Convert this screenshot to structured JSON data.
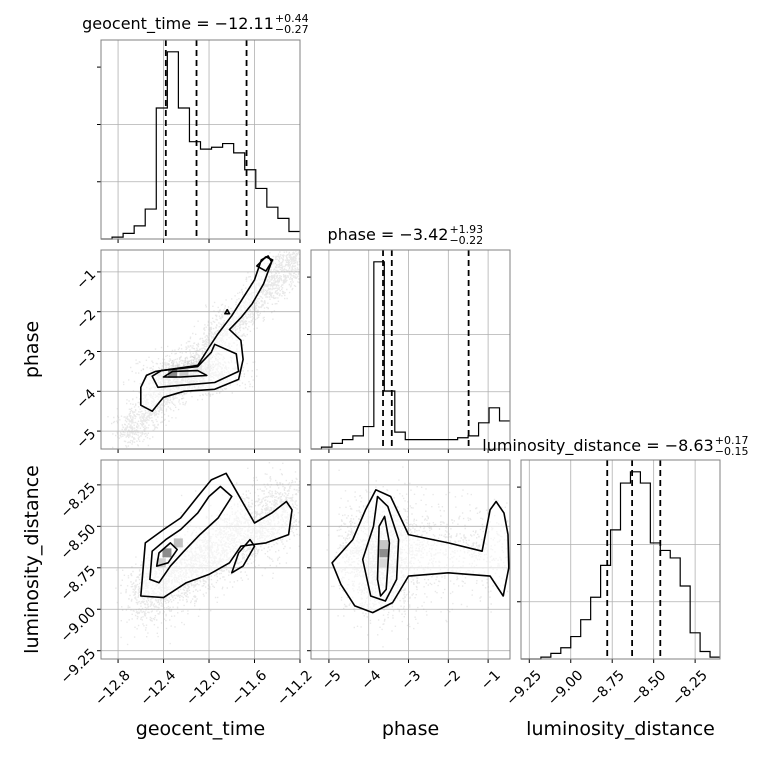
{
  "chart_data": {
    "type": "corner",
    "parameters": [
      "geocent_time",
      "phase",
      "luminosity_distance"
    ],
    "titles": [
      {
        "param": "geocent_time",
        "prefix": "geocent_time = ",
        "median": "−12.11",
        "plus": "+0.44",
        "minus": "−0.27"
      },
      {
        "param": "phase",
        "prefix": "phase = ",
        "median": "−3.42",
        "plus": "+1.93",
        "minus": "−0.22"
      },
      {
        "param": "luminosity_distance",
        "prefix": "luminosity_distance = ",
        "median": "−8.63",
        "plus": "+0.17",
        "minus": "−0.15"
      }
    ],
    "ranges": {
      "geocent_time": [
        -12.95,
        -11.2
      ],
      "phase": [
        -5.45,
        -0.45
      ],
      "luminosity_distance": [
        -9.3,
        -8.1
      ]
    },
    "ticks": {
      "geocent_time": [
        -12.8,
        -12.4,
        -12.0,
        -11.6,
        -11.2
      ],
      "geocent_time_labels": [
        "−12.8",
        "−12.4",
        "−12.0",
        "−11.6",
        "−11.2"
      ],
      "phase": [
        -5,
        -4,
        -3,
        -2,
        -1
      ],
      "phase_labels": [
        "−5",
        "−4",
        "−3",
        "−2",
        "−1"
      ],
      "luminosity_distance": [
        -9.25,
        -9.0,
        -8.75,
        -8.5,
        -8.25
      ],
      "luminosity_distance_labels": [
        "−9.25",
        "−9.00",
        "−8.75",
        "−8.50",
        "−8.25"
      ]
    },
    "quantiles": {
      "geocent_time": [
        -12.38,
        -12.11,
        -11.67
      ],
      "phase": [
        -3.64,
        -3.42,
        -1.49
      ],
      "luminosity_distance": [
        -8.78,
        -8.63,
        -8.46
      ]
    },
    "histograms": {
      "geocent_time": [
        0.0,
        0.01,
        0.03,
        0.07,
        0.16,
        0.7,
        1.0,
        0.7,
        0.52,
        0.48,
        0.49,
        0.51,
        0.46,
        0.37,
        0.27,
        0.17,
        0.11,
        0.04
      ],
      "phase": [
        0.0,
        0.01,
        0.03,
        0.05,
        0.07,
        0.12,
        1.0,
        0.31,
        0.09,
        0.05,
        0.05,
        0.05,
        0.05,
        0.05,
        0.06,
        0.07,
        0.14,
        0.22,
        0.15
      ],
      "luminosity_distance": [
        0.0,
        0.0,
        0.01,
        0.03,
        0.06,
        0.12,
        0.21,
        0.33,
        0.5,
        0.69,
        0.94,
        1.0,
        0.94,
        0.62,
        0.58,
        0.54,
        0.39,
        0.14,
        0.04,
        0.01
      ]
    },
    "contours": {
      "phase_vs_geocent_time": [
        [
          [
            -12.55,
            -3.6
          ],
          [
            -12.47,
            -3.5
          ],
          [
            -12.1,
            -3.35
          ],
          [
            -12.0,
            -2.9
          ],
          [
            -11.92,
            -2.55
          ],
          [
            -11.8,
            -2.1
          ],
          [
            -11.7,
            -1.65
          ],
          [
            -11.6,
            -1.2
          ],
          [
            -11.54,
            -0.7
          ],
          [
            -11.48,
            -0.6
          ],
          [
            -11.45,
            -0.75
          ],
          [
            -11.52,
            -1.3
          ],
          [
            -11.62,
            -1.8
          ],
          [
            -11.72,
            -2.15
          ],
          [
            -11.82,
            -2.45
          ],
          [
            -11.72,
            -2.72
          ],
          [
            -11.7,
            -3.2
          ],
          [
            -11.74,
            -3.7
          ],
          [
            -11.95,
            -3.95
          ],
          [
            -12.22,
            -4.0
          ],
          [
            -12.4,
            -4.15
          ],
          [
            -12.5,
            -4.5
          ],
          [
            -12.6,
            -4.35
          ],
          [
            -12.6,
            -3.9
          ],
          [
            -12.55,
            -3.6
          ]
        ],
        [
          [
            -12.5,
            -3.62
          ],
          [
            -12.42,
            -3.48
          ],
          [
            -12.1,
            -3.38
          ],
          [
            -11.98,
            -3.02
          ],
          [
            -11.95,
            -2.82
          ],
          [
            -11.76,
            -3.06
          ],
          [
            -11.74,
            -3.5
          ],
          [
            -11.95,
            -3.78
          ],
          [
            -12.25,
            -3.85
          ],
          [
            -12.45,
            -3.9
          ],
          [
            -12.5,
            -3.62
          ]
        ],
        [
          [
            -12.4,
            -3.64
          ],
          [
            -12.32,
            -3.5
          ],
          [
            -12.1,
            -3.48
          ],
          [
            -12.02,
            -3.6
          ],
          [
            -12.25,
            -3.64
          ],
          [
            -12.4,
            -3.64
          ]
        ],
        [
          [
            -11.58,
            -0.85
          ],
          [
            -11.5,
            -0.62
          ],
          [
            -11.44,
            -0.7
          ],
          [
            -11.5,
            -0.98
          ],
          [
            -11.58,
            -0.85
          ]
        ],
        [
          [
            -11.86,
            -2.05
          ],
          [
            -11.84,
            -1.95
          ],
          [
            -11.82,
            -2.05
          ],
          [
            -11.86,
            -2.05
          ]
        ]
      ],
      "luminosity_distance_vs_geocent_time": [
        [
          [
            -12.6,
            -8.92
          ],
          [
            -12.56,
            -8.6
          ],
          [
            -12.4,
            -8.52
          ],
          [
            -12.25,
            -8.45
          ],
          [
            -12.1,
            -8.32
          ],
          [
            -11.98,
            -8.22
          ],
          [
            -11.85,
            -8.18
          ],
          [
            -11.75,
            -8.3
          ],
          [
            -11.6,
            -8.48
          ],
          [
            -11.45,
            -8.42
          ],
          [
            -11.32,
            -8.35
          ],
          [
            -11.27,
            -8.4
          ],
          [
            -11.3,
            -8.55
          ],
          [
            -11.5,
            -8.6
          ],
          [
            -11.72,
            -8.62
          ],
          [
            -11.82,
            -8.72
          ],
          [
            -12.0,
            -8.79
          ],
          [
            -12.2,
            -8.84
          ],
          [
            -12.4,
            -8.93
          ],
          [
            -12.6,
            -8.92
          ]
        ],
        [
          [
            -12.52,
            -8.82
          ],
          [
            -12.5,
            -8.65
          ],
          [
            -12.38,
            -8.58
          ],
          [
            -12.25,
            -8.52
          ],
          [
            -12.1,
            -8.42
          ],
          [
            -12.0,
            -8.32
          ],
          [
            -11.9,
            -8.26
          ],
          [
            -11.8,
            -8.32
          ],
          [
            -11.92,
            -8.45
          ],
          [
            -12.08,
            -8.55
          ],
          [
            -12.22,
            -8.65
          ],
          [
            -12.34,
            -8.74
          ],
          [
            -12.44,
            -8.84
          ],
          [
            -12.52,
            -8.82
          ]
        ],
        [
          [
            -12.46,
            -8.74
          ],
          [
            -12.44,
            -8.66
          ],
          [
            -12.34,
            -8.6
          ],
          [
            -12.28,
            -8.64
          ],
          [
            -12.36,
            -8.72
          ],
          [
            -12.46,
            -8.74
          ]
        ],
        [
          [
            -11.8,
            -8.78
          ],
          [
            -11.74,
            -8.66
          ],
          [
            -11.64,
            -8.58
          ],
          [
            -11.6,
            -8.62
          ],
          [
            -11.7,
            -8.74
          ],
          [
            -11.8,
            -8.78
          ]
        ]
      ],
      "luminosity_distance_vs_phase": [
        [
          [
            -4.92,
            -8.72
          ],
          [
            -4.4,
            -8.58
          ],
          [
            -4.08,
            -8.4
          ],
          [
            -3.82,
            -8.28
          ],
          [
            -3.45,
            -8.32
          ],
          [
            -3.0,
            -8.55
          ],
          [
            -2.0,
            -8.6
          ],
          [
            -1.15,
            -8.65
          ],
          [
            -0.95,
            -8.4
          ],
          [
            -0.8,
            -8.35
          ],
          [
            -0.6,
            -8.42
          ],
          [
            -0.5,
            -8.55
          ],
          [
            -0.48,
            -8.75
          ],
          [
            -0.62,
            -8.92
          ],
          [
            -0.95,
            -8.8
          ],
          [
            -2.0,
            -8.78
          ],
          [
            -3.0,
            -8.8
          ],
          [
            -3.4,
            -8.96
          ],
          [
            -3.9,
            -9.02
          ],
          [
            -4.35,
            -8.98
          ],
          [
            -4.7,
            -8.85
          ],
          [
            -4.92,
            -8.72
          ]
        ],
        [
          [
            -4.15,
            -8.7
          ],
          [
            -3.88,
            -8.5
          ],
          [
            -3.78,
            -8.32
          ],
          [
            -3.52,
            -8.38
          ],
          [
            -3.25,
            -8.58
          ],
          [
            -3.3,
            -8.82
          ],
          [
            -3.58,
            -8.95
          ],
          [
            -3.95,
            -8.92
          ],
          [
            -4.15,
            -8.7
          ]
        ],
        [
          [
            -3.78,
            -8.82
          ],
          [
            -3.74,
            -8.5
          ],
          [
            -3.6,
            -8.44
          ],
          [
            -3.48,
            -8.6
          ],
          [
            -3.56,
            -8.88
          ],
          [
            -3.7,
            -8.92
          ],
          [
            -3.78,
            -8.82
          ]
        ]
      ]
    },
    "density_peaks": {
      "phase_vs_geocent_time": [
        [
          -12.32,
          -3.55,
          1.0
        ],
        [
          -12.22,
          -3.55,
          0.45
        ],
        [
          -12.1,
          -3.42,
          0.2
        ]
      ],
      "luminosity_distance_vs_geocent_time": [
        [
          -12.37,
          -8.66,
          1.0
        ],
        [
          -12.27,
          -8.6,
          0.55
        ],
        [
          -12.42,
          -8.72,
          0.4
        ]
      ],
      "luminosity_distance_vs_phase": [
        [
          -3.62,
          -8.66,
          1.0
        ],
        [
          -3.62,
          -8.61,
          0.5
        ],
        [
          -3.62,
          -8.72,
          0.35
        ]
      ]
    },
    "grid": true
  }
}
